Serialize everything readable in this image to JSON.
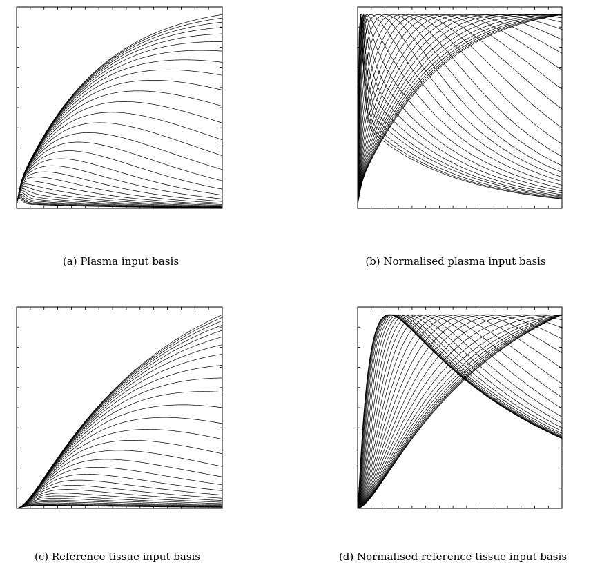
{
  "chart_data": [
    {
      "id": "a",
      "type": "line",
      "caption": "(a)  Plasma input basis",
      "family": "plasma",
      "normalised": false,
      "n_functions": 32,
      "title": "",
      "xlabel": "",
      "ylabel": "",
      "grid": false,
      "tick_labels": false,
      "n_xticks": 15,
      "n_yticks": 10
    },
    {
      "id": "b",
      "type": "line",
      "caption": "(b)  Normalised plasma input basis",
      "family": "plasma",
      "normalised": true,
      "n_functions": 32,
      "title": "",
      "xlabel": "",
      "ylabel": "",
      "grid": false,
      "tick_labels": false,
      "n_xticks": 15,
      "n_yticks": 10
    },
    {
      "id": "c",
      "type": "line",
      "caption": "(c)  Reference tissue input basis",
      "family": "reference",
      "normalised": false,
      "n_functions": 32,
      "title": "",
      "xlabel": "",
      "ylabel": "",
      "grid": false,
      "tick_labels": false,
      "n_xticks": 15,
      "n_yticks": 10
    },
    {
      "id": "d",
      "type": "line",
      "caption": "(d)  Normalised reference tissue input basis",
      "family": "reference",
      "normalised": true,
      "n_functions": 32,
      "title": "",
      "xlabel": "",
      "ylabel": "",
      "grid": false,
      "tick_labels": false,
      "n_xticks": 15,
      "n_yticks": 10
    }
  ]
}
